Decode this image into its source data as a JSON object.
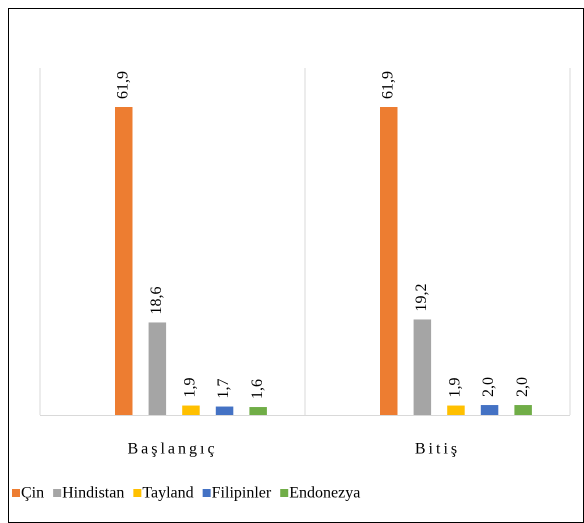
{
  "chart_data": {
    "type": "bar",
    "categories": [
      "Başlangıç",
      "Bitiş"
    ],
    "series": [
      {
        "name": "Çin",
        "color": "#ed7d31",
        "values": [
          61.9,
          61.9
        ],
        "value_labels": [
          "61,9",
          "61,9"
        ]
      },
      {
        "name": "Hindistan",
        "color": "#a5a5a5",
        "values": [
          18.6,
          19.2
        ],
        "value_labels": [
          "18,6",
          "19,2"
        ]
      },
      {
        "name": "Tayland",
        "color": "#ffc000",
        "values": [
          1.9,
          1.9
        ],
        "value_labels": [
          "1,9",
          "1,9"
        ]
      },
      {
        "name": "Filipinler",
        "color": "#4472c4",
        "values": [
          1.7,
          2.0
        ],
        "value_labels": [
          "1,7",
          "2,0"
        ]
      },
      {
        "name": "Endonezya",
        "color": "#70ad47",
        "values": [
          1.6,
          2.0
        ],
        "value_labels": [
          "1,6",
          "2,0"
        ]
      }
    ],
    "legend": "bottom"
  }
}
